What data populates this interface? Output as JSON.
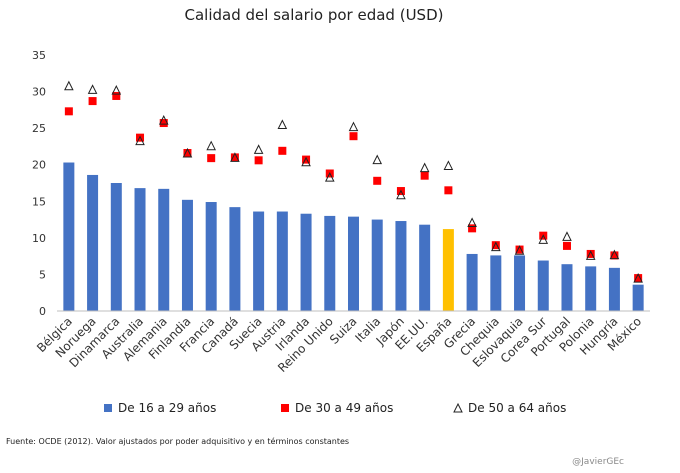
{
  "chart_data": {
    "type": "bar",
    "title": "Calidad del salario por edad (USD)",
    "xlabel": "",
    "ylabel": "",
    "ylim": [
      0,
      35
    ],
    "yticks": [
      0,
      5,
      10,
      15,
      20,
      25,
      30,
      35
    ],
    "grid": false,
    "legend_position": "bottom",
    "categories": [
      "Bélgica",
      "Noruega",
      "Dinamarca",
      "Australia",
      "Alemania",
      "Finlandia",
      "Francia",
      "Canadá",
      "Suecia",
      "Austria",
      "Irlanda",
      "Reino Unido",
      "Suiza",
      "Italia",
      "Japón",
      "EE.UU.",
      "España",
      "Grecia",
      "Chequia",
      "Eslovaquia",
      "Corea Sur",
      "Portugal",
      "Polonia",
      "Hungría",
      "México"
    ],
    "highlight_category": "España",
    "series": [
      {
        "name": "De 16 a 29 años",
        "mark": "bar",
        "color": "#4472C4",
        "highlight_color": "#FFC000",
        "values": [
          20.3,
          18.6,
          17.5,
          16.8,
          16.7,
          15.2,
          14.9,
          14.2,
          13.6,
          13.6,
          13.3,
          13.0,
          12.9,
          12.5,
          12.3,
          11.8,
          11.2,
          7.8,
          7.6,
          7.6,
          6.9,
          6.4,
          6.1,
          5.9,
          3.6
        ]
      },
      {
        "name": "De 30 a 49 años",
        "mark": "square",
        "color": "#FF0000",
        "values": [
          27.3,
          28.7,
          29.4,
          23.7,
          25.7,
          21.6,
          20.9,
          21.0,
          20.6,
          21.9,
          20.7,
          18.8,
          23.9,
          17.8,
          16.4,
          18.5,
          16.5,
          11.3,
          9.0,
          8.4,
          10.3,
          8.9,
          7.8,
          7.6,
          4.5
        ]
      },
      {
        "name": "De 50 a 64 años",
        "mark": "triangle",
        "color": "#222222",
        "values": [
          30.8,
          30.3,
          30.2,
          23.3,
          26.1,
          21.6,
          22.6,
          21.0,
          22.1,
          25.5,
          20.4,
          18.3,
          25.2,
          20.7,
          15.9,
          19.6,
          19.9,
          12.1,
          8.8,
          8.3,
          9.8,
          10.2,
          7.6,
          7.7,
          4.5
        ]
      }
    ]
  },
  "footnote": "Fuente:   OCDE (2012). Valor ajustados por poder  adquisitivo y en términos constantes",
  "credit": "@JavierGEc"
}
